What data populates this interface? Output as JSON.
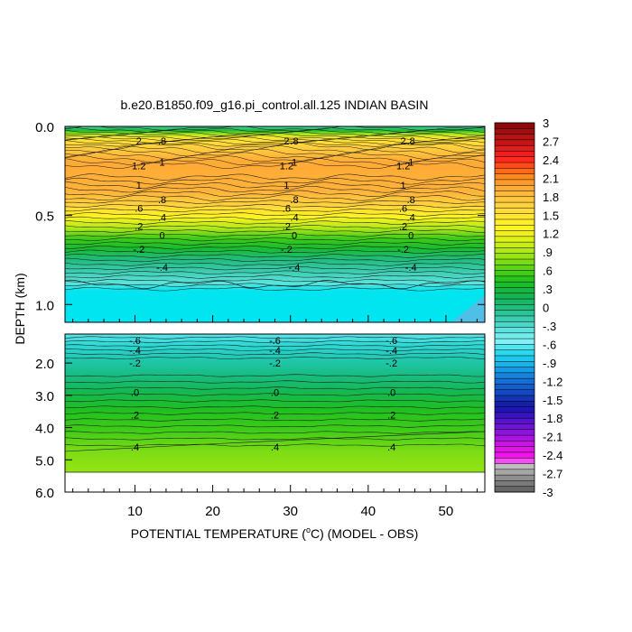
{
  "chart_data": {
    "type": "heatmap",
    "title": "b.e20.B1850.f09_g16.pi_control.all.125 INDIAN BASIN",
    "xlabel_prefix": "POTENTIAL TEMPERATURE (",
    "xlabel_unit": "o",
    "xlabel_suffix": "C) (MODEL - OBS)",
    "ylabel": "DEPTH (km)",
    "xlim": [
      1,
      55
    ],
    "x_ticks": [
      "10",
      "20",
      "30",
      "40",
      "50"
    ],
    "x_tick_values": [
      10,
      20,
      30,
      40,
      50
    ],
    "upper_panel": {
      "ylim": [
        0.0,
        1.1
      ],
      "y_ticks": [
        "0.0",
        "0.5",
        "1.0"
      ],
      "y_tick_values": [
        0.0,
        0.5,
        1.0
      ]
    },
    "lower_panel": {
      "ylim": [
        1.1,
        6.0
      ],
      "y_ticks": [
        "2.0",
        "3.0",
        "4.0",
        "5.0",
        "6.0"
      ],
      "y_tick_values": [
        2.0,
        3.0,
        4.0,
        5.0,
        6.0
      ]
    },
    "colorbar": {
      "labels": [
        "3",
        "2.7",
        "2.4",
        "2.1",
        "1.8",
        "1.5",
        "1.2",
        ".9",
        ".6",
        ".3",
        "0",
        "-.3",
        "-.6",
        "-.9",
        "-1.2",
        "-1.5",
        "-1.8",
        "-2.1",
        "-2.4",
        "-2.7",
        "-3"
      ],
      "colors": [
        "#8c0a0a",
        "#a00f0f",
        "#b41414",
        "#c81414",
        "#dc1e1e",
        "#f01e1e",
        "#ff2a1e",
        "#ff4a1a",
        "#ff6a18",
        "#ff8a1c",
        "#ff9a2a",
        "#ffaa36",
        "#ffba3a",
        "#ffc83e",
        "#ffd23e",
        "#ffdc3c",
        "#ffe632",
        "#ffee28",
        "#fff420",
        "#f0f020",
        "#dcf01a",
        "#c8ec18",
        "#b0e818",
        "#96e414",
        "#7cdc14",
        "#5cd414",
        "#40cc18",
        "#28c41e",
        "#18bc2c",
        "#14b840",
        "#14b450",
        "#18b866",
        "#20bc7e",
        "#2cc496",
        "#3cccb0",
        "#4cd8c8",
        "#5ce4dc",
        "#70ecec",
        "#80f2f6",
        "#50e6f0",
        "#2cd8ee",
        "#1ec8ec",
        "#18b4e8",
        "#149ce4",
        "#1484dc",
        "#1470d4",
        "#145cca",
        "#1448c0",
        "#1434b4",
        "#1420a8",
        "#2014b4",
        "#3814c0",
        "#5414cc",
        "#7014d4",
        "#8c14dc",
        "#aa14e0",
        "#c814e4",
        "#e014e4",
        "#f014e8",
        "#f050f0",
        "#bdbdbd",
        "#a6a6a6",
        "#8f8f8f",
        "#7a7a7a",
        "#666666"
      ]
    },
    "upper_contours": [
      {
        "depth": 0.08,
        "label": "2"
      },
      {
        "depth": 0.08,
        "label": ".8"
      },
      {
        "depth": 0.22,
        "label": "1.2"
      },
      {
        "depth": 0.2,
        "label": "1"
      },
      {
        "depth": 0.33,
        "label": "1"
      },
      {
        "depth": 0.41,
        "label": ".8"
      },
      {
        "depth": 0.46,
        "label": ".6"
      },
      {
        "depth": 0.51,
        "label": ".4"
      },
      {
        "depth": 0.56,
        "label": ".2"
      },
      {
        "depth": 0.61,
        "label": "0"
      },
      {
        "depth": 0.69,
        "label": "-.2"
      },
      {
        "depth": 0.79,
        "label": "-.4"
      }
    ],
    "lower_contours": [
      {
        "depth": 1.3,
        "label": "-.6"
      },
      {
        "depth": 1.6,
        "label": "-.4"
      },
      {
        "depth": 2.0,
        "label": "-.2"
      },
      {
        "depth": 2.9,
        "label": ".0"
      },
      {
        "depth": 3.6,
        "label": ".2"
      },
      {
        "depth": 4.6,
        "label": ".4"
      }
    ]
  }
}
